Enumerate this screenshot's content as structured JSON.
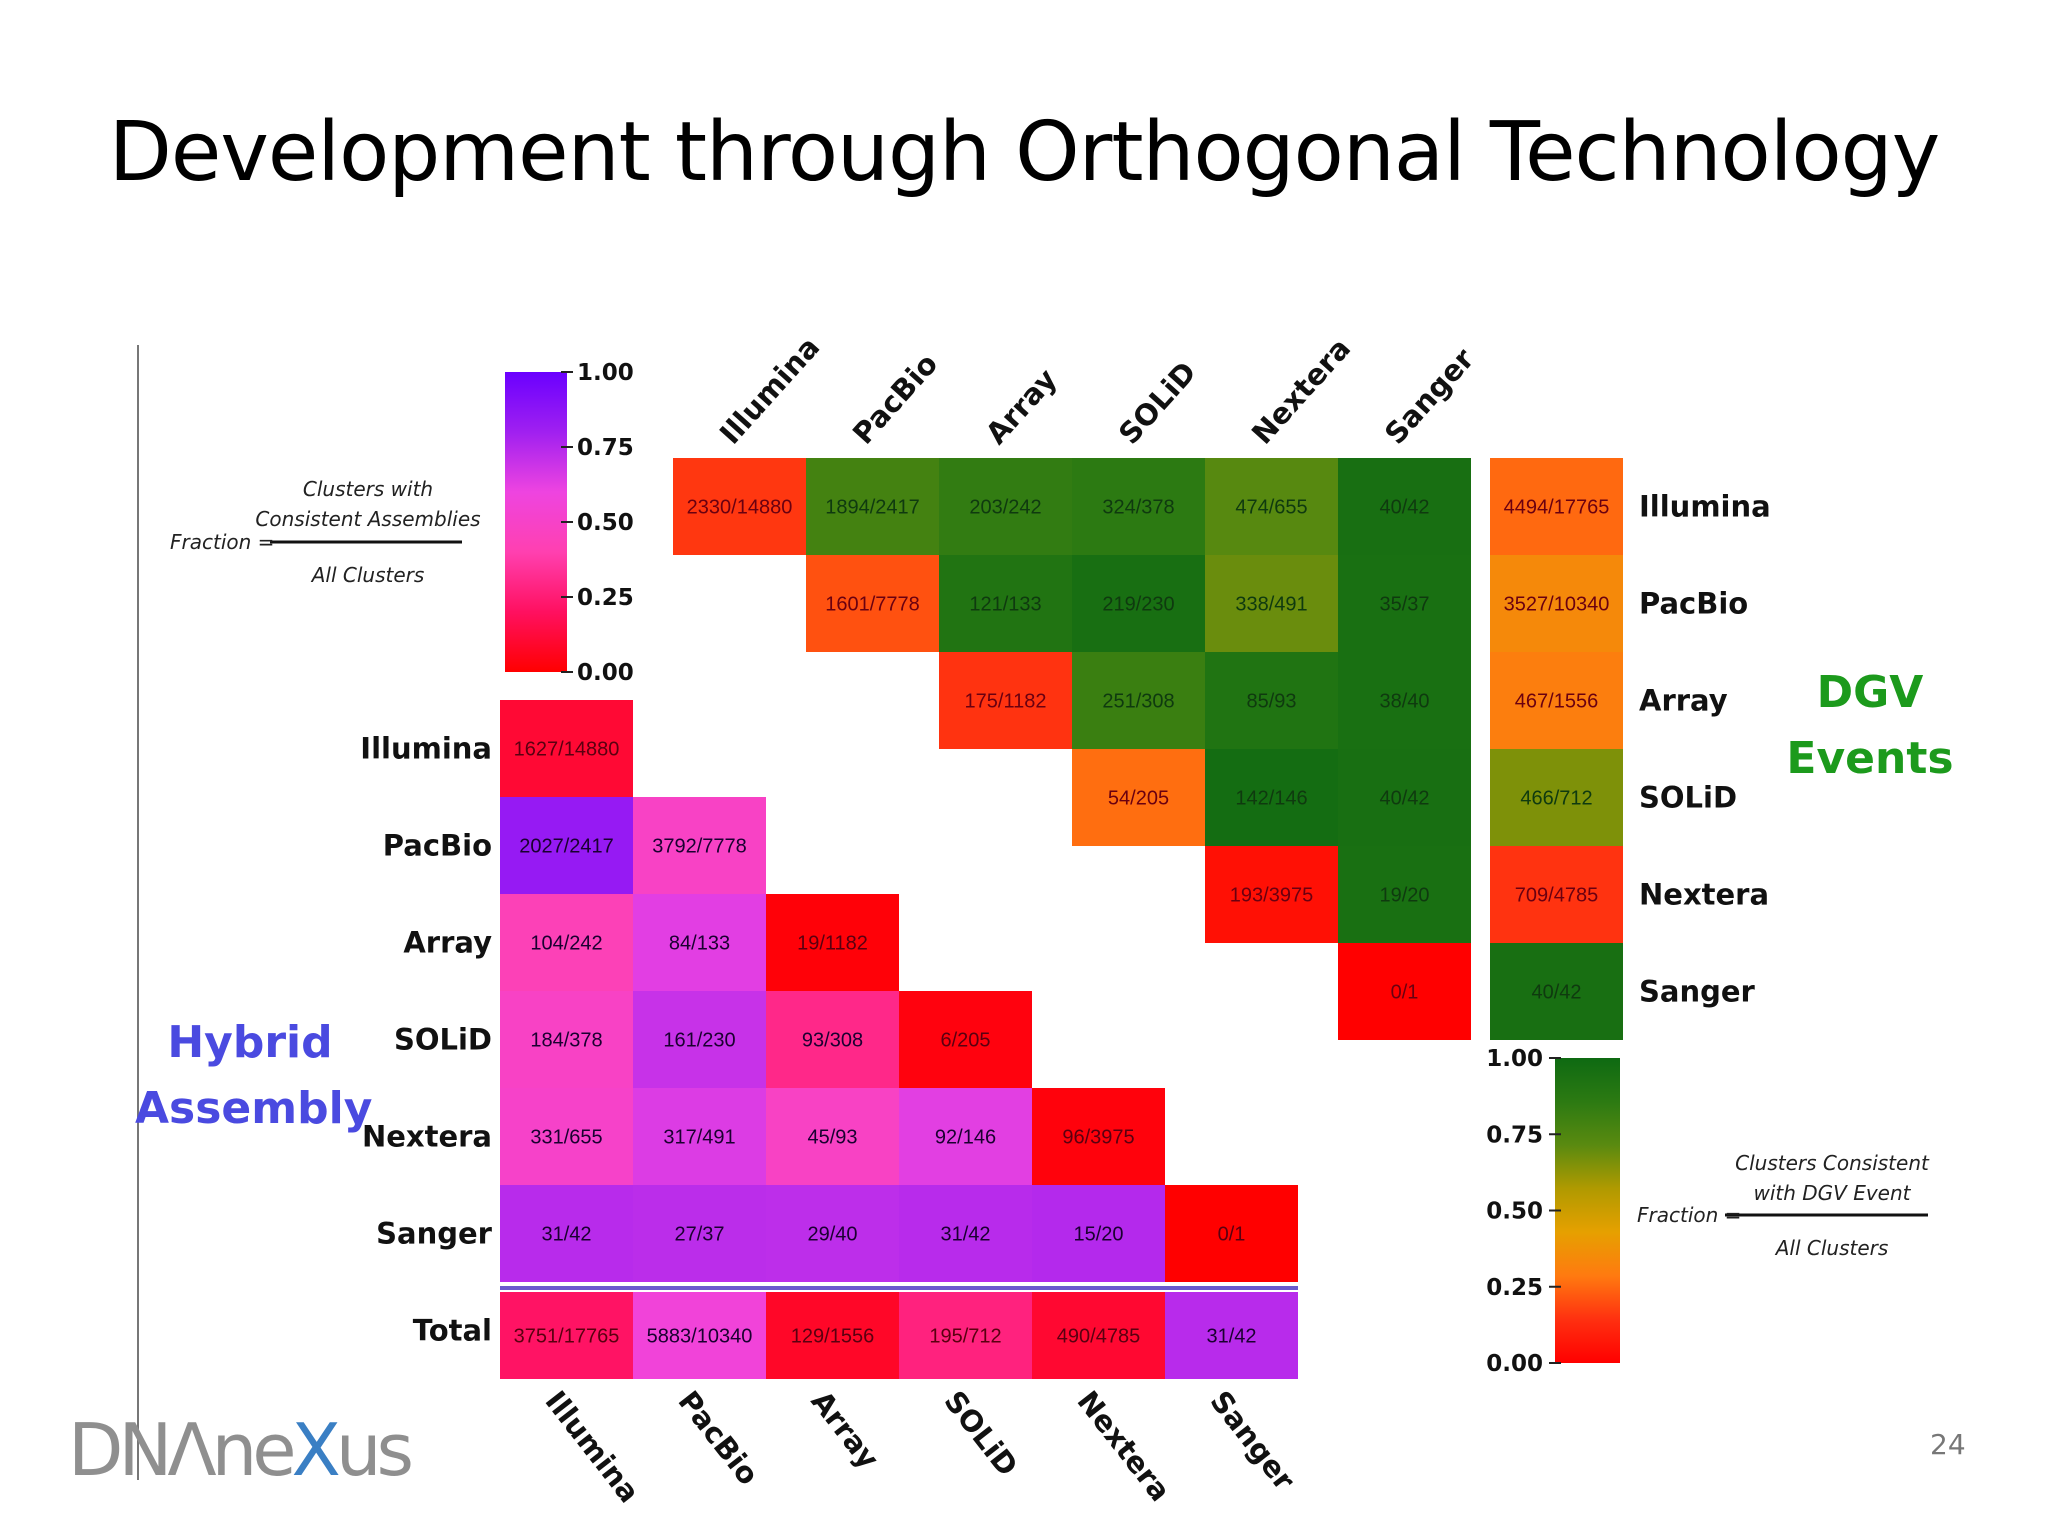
{
  "slide": {
    "title": "Development through Orthogonal Technology",
    "page_number": "24",
    "logo": {
      "prefix": "DN",
      "glyph": "Λ",
      "middle": "ne",
      "x": "X",
      "suffix": "us"
    }
  },
  "labels": {
    "hybrid": [
      "Hybrid",
      "Assembly"
    ],
    "dgv": [
      "DGV",
      "Events"
    ]
  },
  "colors": {
    "accent_hybrid": "#4a4ae0",
    "accent_dgv": "#1c9a1c",
    "logo_gray": "#8f8f8f",
    "logo_blue": "#3a7fc4"
  },
  "chart_data": [
    {
      "type": "heatmap",
      "name_in_image": "Hybrid Assembly",
      "title": "",
      "technologies": [
        "Illumina",
        "PacBio",
        "Array",
        "SOLiD",
        "Nextera",
        "Sanger"
      ],
      "total_label": "Total",
      "rows": [
        {
          "label": "Illumina",
          "cells": [
            {
              "text": "1627/14880",
              "num": 1627,
              "den": 14880
            }
          ]
        },
        {
          "label": "PacBio",
          "cells": [
            {
              "text": "2027/2417",
              "num": 2027,
              "den": 2417
            },
            {
              "text": "3792/7778",
              "num": 3792,
              "den": 7778
            }
          ]
        },
        {
          "label": "Array",
          "cells": [
            {
              "text": "104/242",
              "num": 104,
              "den": 242
            },
            {
              "text": "84/133",
              "num": 84,
              "den": 133
            },
            {
              "text": "19/1182",
              "num": 19,
              "den": 1182
            }
          ]
        },
        {
          "label": "SOLiD",
          "cells": [
            {
              "text": "184/378",
              "num": 184,
              "den": 378
            },
            {
              "text": "161/230",
              "num": 161,
              "den": 230
            },
            {
              "text": "93/308",
              "num": 93,
              "den": 308
            },
            {
              "text": "6/205",
              "num": 6,
              "den": 205
            }
          ]
        },
        {
          "label": "Nextera",
          "cells": [
            {
              "text": "331/655",
              "num": 331,
              "den": 655
            },
            {
              "text": "317/491",
              "num": 317,
              "den": 491
            },
            {
              "text": "45/93",
              "num": 45,
              "den": 93
            },
            {
              "text": "92/146",
              "num": 92,
              "den": 146
            },
            {
              "text": "96/3975",
              "num": 96,
              "den": 3975
            }
          ]
        },
        {
          "label": "Sanger",
          "cells": [
            {
              "text": "31/42",
              "num": 31,
              "den": 42
            },
            {
              "text": "27/37",
              "num": 27,
              "den": 37
            },
            {
              "text": "29/40",
              "num": 29,
              "den": 40
            },
            {
              "text": "31/42",
              "num": 31,
              "den": 42
            },
            {
              "text": "15/20",
              "num": 15,
              "den": 20
            },
            {
              "text": "0/1",
              "num": 0,
              "den": 1
            }
          ]
        }
      ],
      "total_row": [
        {
          "text": "3751/17765",
          "num": 3751,
          "den": 17765
        },
        {
          "text": "5883/10340",
          "num": 5883,
          "den": 10340
        },
        {
          "text": "129/1556",
          "num": 129,
          "den": 1556
        },
        {
          "text": "195/712",
          "num": 195,
          "den": 712
        },
        {
          "text": "490/4785",
          "num": 490,
          "den": 4785
        },
        {
          "text": "31/42",
          "num": 31,
          "den": 42
        }
      ],
      "colorbar": {
        "ticks": [
          "1.00",
          "0.75",
          "0.50",
          "0.25",
          "0.00"
        ],
        "stops": [
          "#ff0000",
          "#ff1060",
          "#ff40b0",
          "#ee44e0",
          "#a020f0",
          "#6a00ff"
        ],
        "range": [
          0,
          1
        ]
      },
      "formula": {
        "prefix": "Fraction =",
        "numerator": [
          "Clusters with",
          "Consistent Assemblies"
        ],
        "denominator": "All Clusters"
      }
    },
    {
      "type": "heatmap",
      "name_in_image": "DGV Events",
      "title": "",
      "technologies": [
        "Illumina",
        "PacBio",
        "Array",
        "SOLiD",
        "Nextera",
        "Sanger"
      ],
      "rows": [
        {
          "label": "Illumina",
          "cells": [
            {
              "text": "2330/14880",
              "num": 2330,
              "den": 14880
            },
            {
              "text": "1894/2417",
              "num": 1894,
              "den": 2417
            },
            {
              "text": "203/242",
              "num": 203,
              "den": 242
            },
            {
              "text": "324/378",
              "num": 324,
              "den": 378
            },
            {
              "text": "474/655",
              "num": 474,
              "den": 655
            },
            {
              "text": "40/42",
              "num": 40,
              "den": 42
            }
          ]
        },
        {
          "label": "PacBio",
          "cells": [
            {
              "text": "1601/7778",
              "num": 1601,
              "den": 7778
            },
            {
              "text": "121/133",
              "num": 121,
              "den": 133
            },
            {
              "text": "219/230",
              "num": 219,
              "den": 230
            },
            {
              "text": "338/491",
              "num": 338,
              "den": 491
            },
            {
              "text": "35/37",
              "num": 35,
              "den": 37
            }
          ]
        },
        {
          "label": "Array",
          "cells": [
            {
              "text": "175/1182",
              "num": 175,
              "den": 1182
            },
            {
              "text": "251/308",
              "num": 251,
              "den": 308
            },
            {
              "text": "85/93",
              "num": 85,
              "den": 93
            },
            {
              "text": "38/40",
              "num": 38,
              "den": 40
            }
          ]
        },
        {
          "label": "SOLiD",
          "cells": [
            {
              "text": "54/205",
              "num": 54,
              "den": 205
            },
            {
              "text": "142/146",
              "num": 142,
              "den": 146
            },
            {
              "text": "40/42",
              "num": 40,
              "den": 42
            }
          ]
        },
        {
          "label": "Nextera",
          "cells": [
            {
              "text": "193/3975",
              "num": 193,
              "den": 3975
            },
            {
              "text": "19/20",
              "num": 19,
              "den": 20
            }
          ]
        },
        {
          "label": "Sanger",
          "cells": [
            {
              "text": "0/1",
              "num": 0,
              "den": 1
            }
          ]
        }
      ],
      "total_column": [
        {
          "text": "4494/17765",
          "num": 4494,
          "den": 17765
        },
        {
          "text": "3527/10340",
          "num": 3527,
          "den": 10340
        },
        {
          "text": "467/1556",
          "num": 467,
          "den": 1556
        },
        {
          "text": "466/712",
          "num": 466,
          "den": 712
        },
        {
          "text": "709/4785",
          "num": 709,
          "den": 4785
        },
        {
          "text": "40/42",
          "num": 40,
          "den": 42
        }
      ],
      "colorbar": {
        "ticks": [
          "1.00",
          "0.75",
          "0.50",
          "0.25",
          "0.00"
        ],
        "stops": [
          "#ff0000",
          "#ff3010",
          "#ff7a10",
          "#e6a000",
          "#b09a00",
          "#5a8a10",
          "#2c7a12",
          "#0e6a12"
        ],
        "range": [
          0,
          1
        ]
      },
      "formula": {
        "prefix": "Fraction =",
        "numerator": [
          "Clusters Consistent",
          "with DGV Event"
        ],
        "denominator": "All Clusters"
      }
    }
  ]
}
